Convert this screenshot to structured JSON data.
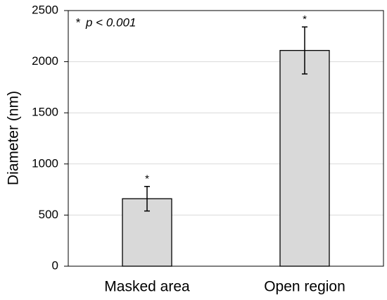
{
  "chart_data": {
    "type": "bar",
    "y_label": "Diameter (nm)",
    "categories": [
      "Masked area",
      "Open region"
    ],
    "values": [
      660,
      2110
    ],
    "errors": [
      120,
      230
    ],
    "significance_labels": [
      "*",
      "*"
    ],
    "annotation": {
      "marker": "*",
      "text": "p < 0.001"
    },
    "color": "#d9d9d9",
    "ylim": [
      0,
      2500
    ],
    "yticks": [
      0,
      500,
      1000,
      1500,
      2000,
      2500
    ],
    "grid": true
  }
}
